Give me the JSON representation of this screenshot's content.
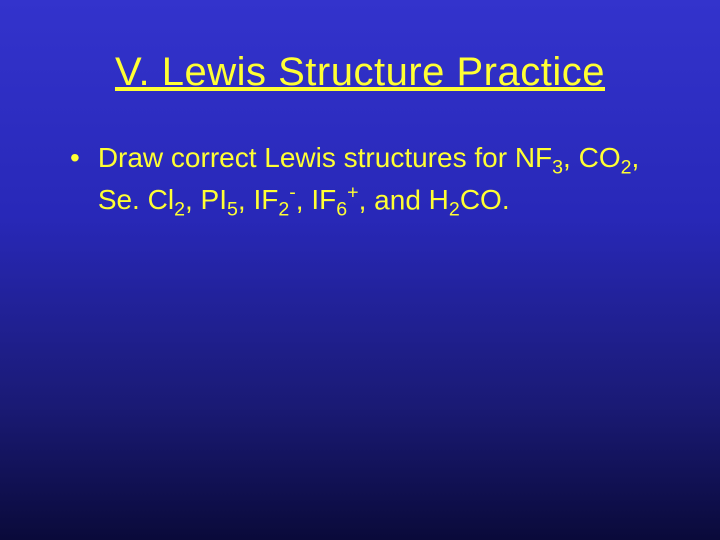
{
  "slide": {
    "title": "V. Lewis Structure Practice",
    "background_gradient": {
      "top": "#3333cc",
      "mid": "#2828b8",
      "low": "#1a1a75",
      "bottom": "#0a0a3a"
    },
    "text_color": "#ffff33",
    "title_fontsize": 40,
    "body_fontsize": 28,
    "bullets": [
      {
        "prefix": "Draw correct Lewis structures for ",
        "formulas": [
          {
            "base": "NF",
            "sub": "3",
            "sup": ""
          },
          {
            "base": "CO",
            "sub": "2",
            "sup": ""
          },
          {
            "base": "Se. Cl",
            "sub": "2",
            "sup": ""
          },
          {
            "base": "PI",
            "sub": "5",
            "sup": ""
          },
          {
            "base": "IF",
            "sub": "2",
            "sup": "-"
          },
          {
            "base": "IF",
            "sub": "6",
            "sup": "+"
          }
        ],
        "last_connector": ", and ",
        "last_formula": {
          "base": "H",
          "sub": "2",
          "sup": "",
          "suffix": "CO."
        }
      }
    ]
  }
}
